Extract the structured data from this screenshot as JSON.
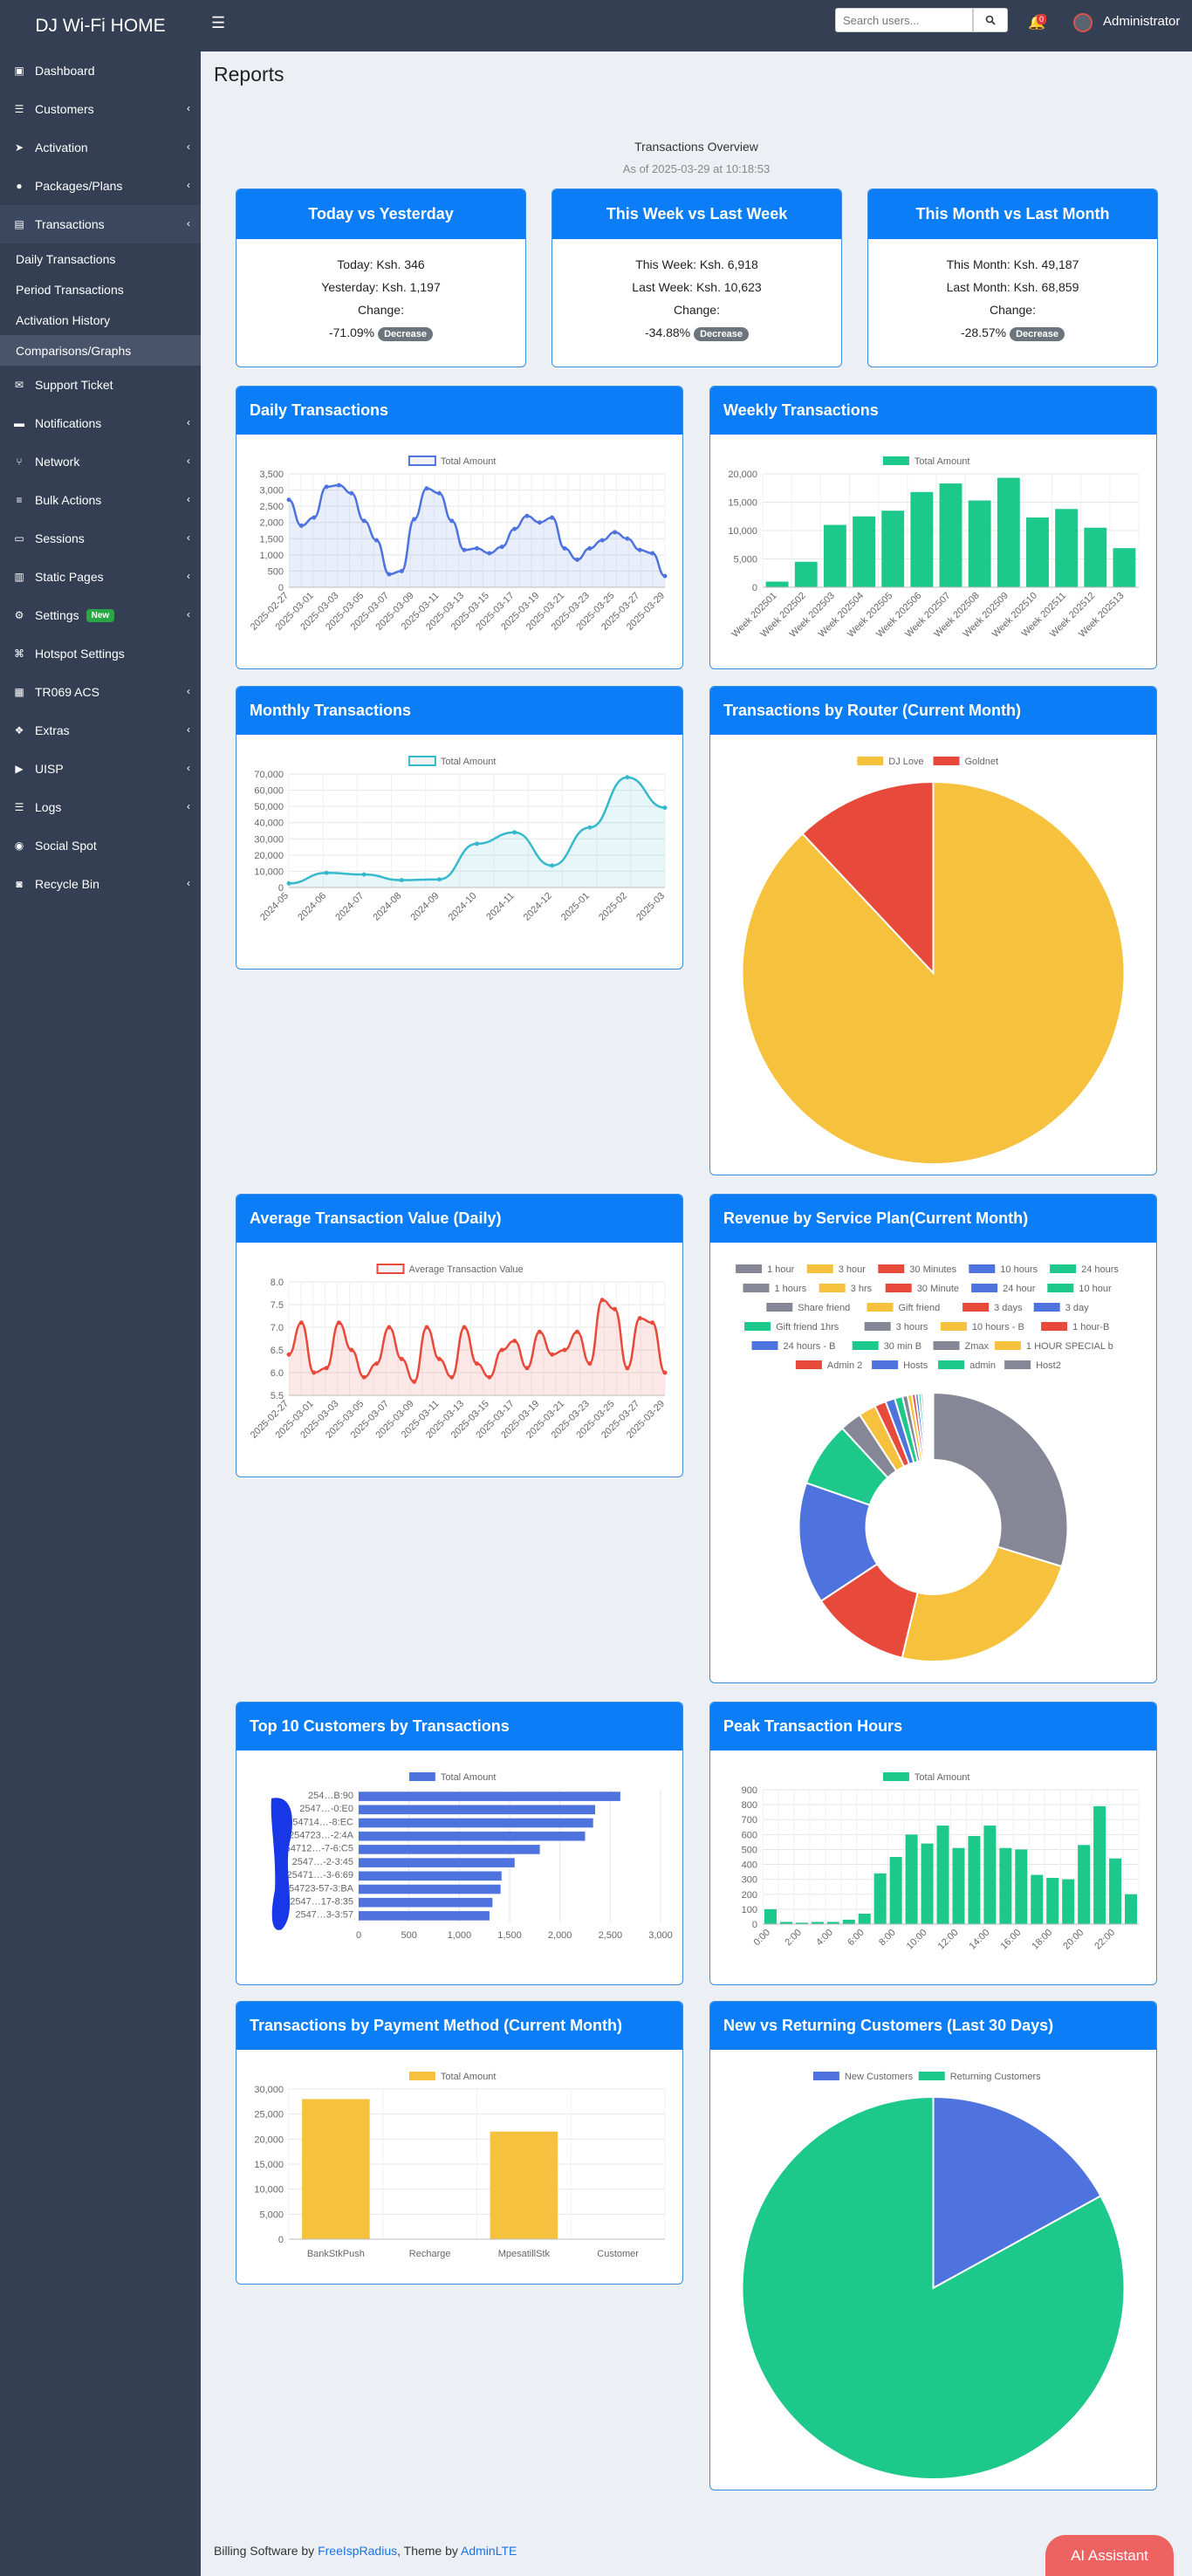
{
  "app": {
    "brand": "DJ Wi-Fi HOME",
    "search_placeholder": "Search users...",
    "notif_count": "0",
    "username": "Administrator"
  },
  "sidebar": {
    "items": [
      {
        "label": "Dashboard",
        "icon": "dashboard-icon",
        "arrow": false
      },
      {
        "label": "Customers",
        "icon": "users-icon",
        "arrow": true
      },
      {
        "label": "Activation",
        "icon": "rocket-icon",
        "arrow": true
      },
      {
        "label": "Packages/Plans",
        "icon": "box-icon",
        "arrow": true
      },
      {
        "label": "Transactions",
        "icon": "receipt-icon",
        "arrow": true,
        "open": true
      },
      {
        "label": "Support Ticket",
        "icon": "ticket-icon",
        "arrow": false
      },
      {
        "label": "Notifications",
        "icon": "comment-icon",
        "arrow": true
      },
      {
        "label": "Network",
        "icon": "network-icon",
        "arrow": true
      },
      {
        "label": "Bulk Actions",
        "icon": "layers-icon",
        "arrow": true
      },
      {
        "label": "Sessions",
        "icon": "id-card-icon",
        "arrow": true
      },
      {
        "label": "Static Pages",
        "icon": "book-icon",
        "arrow": true
      },
      {
        "label": "Settings",
        "icon": "gear-icon",
        "arrow": true,
        "badge": "New"
      },
      {
        "label": "Hotspot Settings",
        "icon": "wifi-icon",
        "arrow": false
      },
      {
        "label": "TR069 ACS",
        "icon": "server-icon",
        "arrow": true
      },
      {
        "label": "Extras",
        "icon": "cubes-icon",
        "arrow": true
      },
      {
        "label": "UISP",
        "icon": "bullhorn-icon",
        "arrow": true
      },
      {
        "label": "Logs",
        "icon": "log-icon",
        "arrow": true
      },
      {
        "label": "Social Spot",
        "icon": "social-icon",
        "arrow": false
      },
      {
        "label": "Recycle Bin",
        "icon": "trash-icon",
        "arrow": true
      }
    ],
    "sub_items": [
      "Daily Transactions",
      "Period Transactions",
      "Activation History",
      "Comparisons/Graphs"
    ]
  },
  "page": {
    "title": "Reports",
    "overview_title": "Transactions Overview",
    "overview_subtitle": "As of 2025-03-29 at 10:18:53"
  },
  "comparisons": [
    {
      "title": "Today vs Yesterday",
      "line1": "Today: Ksh. 346",
      "line2": "Yesterday: Ksh. 1,197",
      "change_label": "Change:",
      "change": "-71.09%",
      "badge": "Decrease"
    },
    {
      "title": "This Week vs Last Week",
      "line1": "This Week: Ksh. 6,918",
      "line2": "Last Week: Ksh. 10,623",
      "change_label": "Change:",
      "change": "-34.88%",
      "badge": "Decrease"
    },
    {
      "title": "This Month vs Last Month",
      "line1": "This Month: Ksh. 49,187",
      "line2": "Last Month: Ksh. 68,859",
      "change_label": "Change:",
      "change": "-28.57%",
      "badge": "Decrease"
    }
  ],
  "colors": {
    "blue": "#4e73df",
    "green": "#1cc88a",
    "teal": "#36b9cc",
    "yellow": "#f6c23e",
    "red": "#e74a3b",
    "gray": "#858796",
    "header": "#0b7ef7"
  },
  "chart_data": [
    {
      "id": "daily",
      "title": "Daily Transactions",
      "type": "line",
      "series_name": "Total Amount",
      "color": "#4e73df",
      "fill": "rgba(78,115,223,0.12)",
      "x": [
        "2025-02-27",
        "2025-02-28",
        "2025-03-01",
        "2025-03-02",
        "2025-03-03",
        "2025-03-04",
        "2025-03-05",
        "2025-03-06",
        "2025-03-07",
        "2025-03-08",
        "2025-03-09",
        "2025-03-10",
        "2025-03-11",
        "2025-03-12",
        "2025-03-13",
        "2025-03-14",
        "2025-03-15",
        "2025-03-16",
        "2025-03-17",
        "2025-03-18",
        "2025-03-19",
        "2025-03-20",
        "2025-03-21",
        "2025-03-22",
        "2025-03-23",
        "2025-03-24",
        "2025-03-25",
        "2025-03-26",
        "2025-03-27",
        "2025-03-28",
        "2025-03-29"
      ],
      "values": [
        2700,
        1900,
        2150,
        3100,
        3150,
        2900,
        2050,
        1450,
        400,
        500,
        2100,
        3050,
        2900,
        2050,
        1150,
        1200,
        1050,
        1250,
        1800,
        2200,
        2000,
        2150,
        1200,
        850,
        1200,
        1450,
        1700,
        1500,
        1150,
        1050,
        346
      ],
      "xticks": [
        "2025-02-27",
        "2025-03-01",
        "2025-03-03",
        "2025-03-05",
        "2025-03-07",
        "2025-03-09",
        "2025-03-11",
        "2025-03-13",
        "2025-03-15",
        "2025-03-17",
        "2025-03-19",
        "2025-03-21",
        "2025-03-23",
        "2025-03-25",
        "2025-03-27",
        "2025-03-29"
      ],
      "yticks": [
        "0",
        "500",
        "1,000",
        "1,500",
        "2,000",
        "2,500",
        "3,000",
        "3,500"
      ],
      "ylim": [
        0,
        3500
      ],
      "grid": true,
      "legend": "top"
    },
    {
      "id": "weekly",
      "title": "Weekly Transactions",
      "type": "bar",
      "series_name": "Total Amount",
      "color": "#1cc88a",
      "categories": [
        "Week 202501",
        "Week 202502",
        "Week 202503",
        "Week 202504",
        "Week 202505",
        "Week 202506",
        "Week 202507",
        "Week 202508",
        "Week 202509",
        "Week 202510",
        "Week 202511",
        "Week 202512",
        "Week 202513"
      ],
      "values": [
        1000,
        4500,
        11000,
        12500,
        13500,
        16800,
        18300,
        15300,
        19300,
        12300,
        13800,
        10500,
        6900
      ],
      "yticks": [
        "0",
        "5,000",
        "10,000",
        "15,000",
        "20,000"
      ],
      "ylim": [
        0,
        20000
      ],
      "grid": true,
      "legend": "top"
    },
    {
      "id": "monthly",
      "title": "Monthly Transactions",
      "type": "line",
      "series_name": "Total Amount",
      "color": "#36b9cc",
      "fill": "rgba(54,185,204,0.12)",
      "x": [
        "2024-05",
        "2024-06",
        "2024-07",
        "2024-08",
        "2024-09",
        "2024-10",
        "2024-11",
        "2024-12",
        "2025-01",
        "2025-02",
        "2025-03"
      ],
      "values": [
        2500,
        9000,
        8000,
        4500,
        5000,
        27000,
        34000,
        13500,
        37000,
        68000,
        49187
      ],
      "yticks": [
        "0",
        "10,000",
        "20,000",
        "30,000",
        "40,000",
        "50,000",
        "60,000",
        "70,000"
      ],
      "ylim": [
        0,
        70000
      ],
      "grid": true,
      "legend": "top"
    },
    {
      "id": "router",
      "title": "Transactions by Router (Current Month)",
      "type": "pie",
      "labels": [
        "DJ Love",
        "Goldnet"
      ],
      "values": [
        88,
        12
      ],
      "colors": [
        "#f6c23e",
        "#e74a3b"
      ],
      "legend": "top"
    },
    {
      "id": "avgvalue",
      "title": "Average Transaction Value (Daily)",
      "type": "line",
      "series_name": "Average Transaction Value",
      "color": "#e74a3b",
      "fill": "rgba(231,74,59,0.12)",
      "x": [
        "2025-02-27",
        "2025-02-28",
        "2025-03-01",
        "2025-03-02",
        "2025-03-03",
        "2025-03-04",
        "2025-03-05",
        "2025-03-06",
        "2025-03-07",
        "2025-03-08",
        "2025-03-09",
        "2025-03-10",
        "2025-03-11",
        "2025-03-12",
        "2025-03-13",
        "2025-03-14",
        "2025-03-15",
        "2025-03-16",
        "2025-03-17",
        "2025-03-18",
        "2025-03-19",
        "2025-03-20",
        "2025-03-21",
        "2025-03-22",
        "2025-03-23",
        "2025-03-24",
        "2025-03-25",
        "2025-03-26",
        "2025-03-27",
        "2025-03-28",
        "2025-03-29"
      ],
      "values": [
        6.4,
        7.1,
        6.0,
        6.1,
        7.1,
        6.5,
        5.9,
        6.2,
        7.0,
        6.3,
        5.8,
        7.0,
        6.3,
        5.9,
        7.0,
        6.2,
        5.9,
        6.5,
        6.7,
        6.1,
        6.9,
        6.4,
        6.5,
        6.9,
        6.2,
        7.6,
        7.4,
        6.1,
        7.2,
        7.1,
        6.0
      ],
      "xticks": [
        "2025-02-27",
        "2025-03-01",
        "2025-03-03",
        "2025-03-05",
        "2025-03-07",
        "2025-03-09",
        "2025-03-11",
        "2025-03-13",
        "2025-03-15",
        "2025-03-17",
        "2025-03-19",
        "2025-03-21",
        "2025-03-23",
        "2025-03-25",
        "2025-03-27",
        "2025-03-29"
      ],
      "yticks": [
        "5.5",
        "6.0",
        "6.5",
        "7.0",
        "7.5",
        "8.0"
      ],
      "ylim": [
        5.5,
        8.0
      ],
      "grid": true,
      "legend": "top"
    },
    {
      "id": "plan",
      "title": "Revenue by Service Plan(Current Month)",
      "type": "doughnut",
      "labels": [
        "1 hour",
        "3 hour",
        "30 Minutes",
        "10 hours",
        "24 hours",
        "1 hours",
        "3 hrs",
        "30 Minute",
        "24 hour",
        "10 hour",
        "Share friend",
        "Gift friend",
        "3 days",
        "3 day",
        "Gift friend 1hrs",
        "3 hours",
        "10 hours - B",
        "1 hour-B",
        "24 hours - B",
        "30 min B",
        "Zmax",
        "1 HOUR SPECIAL b",
        "Admin 2",
        "Hosts",
        "admin",
        "Host2"
      ],
      "colors": [
        "#858796",
        "#f6c23e",
        "#e74a3b",
        "#4e73df",
        "#1cc88a",
        "#858796",
        "#f6c23e",
        "#e74a3b",
        "#4e73df",
        "#1cc88a",
        "#858796",
        "#f6c23e",
        "#e74a3b",
        "#4e73df",
        "#1cc88a",
        "#858796",
        "#f6c23e",
        "#e74a3b",
        "#4e73df",
        "#1cc88a",
        "#858796",
        "#f6c23e",
        "#e74a3b",
        "#4e73df",
        "#1cc88a",
        "#858796"
      ],
      "values": [
        28.5,
        23,
        11.5,
        14,
        7.5,
        2.5,
        2,
        1.3,
        1.1,
        0.9,
        0.6,
        0.5,
        0.4,
        0.35,
        0.3,
        0.25,
        0.2,
        0.2,
        0.15,
        0.15,
        0.1,
        0.1,
        0.1,
        0.05,
        0.05,
        0.05
      ],
      "legend": "top"
    },
    {
      "id": "topcust",
      "title": "Top 10 Customers by Transactions",
      "type": "bar",
      "orientation": "horizontal",
      "series_name": "Total Amount",
      "color": "#4e73df",
      "categories": [
        "254…B:90",
        "2547…-0:E0",
        "254714…-8:EC",
        "254723…-2:4A",
        "254712…-7-6:C5",
        "2547…-2-3:45",
        "25471…-3-6:69",
        "254723‑57-3:BA",
        "2547…17-8:35",
        "2547…3-3:57"
      ],
      "values": [
        2600,
        2350,
        2330,
        2250,
        1800,
        1550,
        1420,
        1410,
        1330,
        1300
      ],
      "xticks": [
        "0",
        "500",
        "1,000",
        "1,500",
        "2,000",
        "2,500",
        "3,000"
      ],
      "xlim": [
        0,
        3000
      ],
      "grid": true,
      "legend": "top"
    },
    {
      "id": "peak",
      "title": "Peak Transaction Hours",
      "type": "bar",
      "series_name": "Total Amount",
      "color": "#1cc88a",
      "categories": [
        "0:00",
        "1:00",
        "2:00",
        "3:00",
        "4:00",
        "5:00",
        "6:00",
        "7:00",
        "8:00",
        "9:00",
        "10:00",
        "11:00",
        "12:00",
        "13:00",
        "14:00",
        "15:00",
        "16:00",
        "17:00",
        "18:00",
        "19:00",
        "20:00",
        "21:00",
        "22:00",
        "23:00"
      ],
      "values": [
        100,
        15,
        10,
        15,
        15,
        30,
        70,
        340,
        450,
        600,
        540,
        660,
        510,
        590,
        660,
        510,
        500,
        330,
        310,
        300,
        530,
        790,
        440,
        200
      ],
      "xticks": [
        "0:00",
        "2:00",
        "4:00",
        "6:00",
        "8:00",
        "10:00",
        "12:00",
        "14:00",
        "16:00",
        "18:00",
        "20:00",
        "22:00"
      ],
      "yticks": [
        "0",
        "100",
        "200",
        "300",
        "400",
        "500",
        "600",
        "700",
        "800",
        "900"
      ],
      "ylim": [
        0,
        900
      ],
      "grid": true,
      "legend": "top"
    },
    {
      "id": "payment",
      "title": "Transactions by Payment Method (Current Month)",
      "type": "bar",
      "series_name": "Total Amount",
      "color": "#f6c23e",
      "categories": [
        "BankStkPush",
        "Recharge",
        "MpesatillStk",
        "Customer"
      ],
      "values": [
        28000,
        0,
        21500,
        0
      ],
      "yticks": [
        "0",
        "5,000",
        "10,000",
        "15,000",
        "20,000",
        "25,000",
        "30,000"
      ],
      "ylim": [
        0,
        30000
      ],
      "grid": true,
      "legend": "top"
    },
    {
      "id": "newret",
      "title": "New vs Returning Customers (Last 30 Days)",
      "type": "pie",
      "labels": [
        "New Customers",
        "Returning Customers"
      ],
      "values": [
        17,
        83
      ],
      "colors": [
        "#4e73df",
        "#1cc88a"
      ],
      "legend": "top"
    }
  ],
  "footer": {
    "prefix": "Billing Software by ",
    "link1": "FreeIspRadius",
    "mid": ", Theme by ",
    "link2": "AdminLTE"
  },
  "ai_button": "AI Assistant"
}
